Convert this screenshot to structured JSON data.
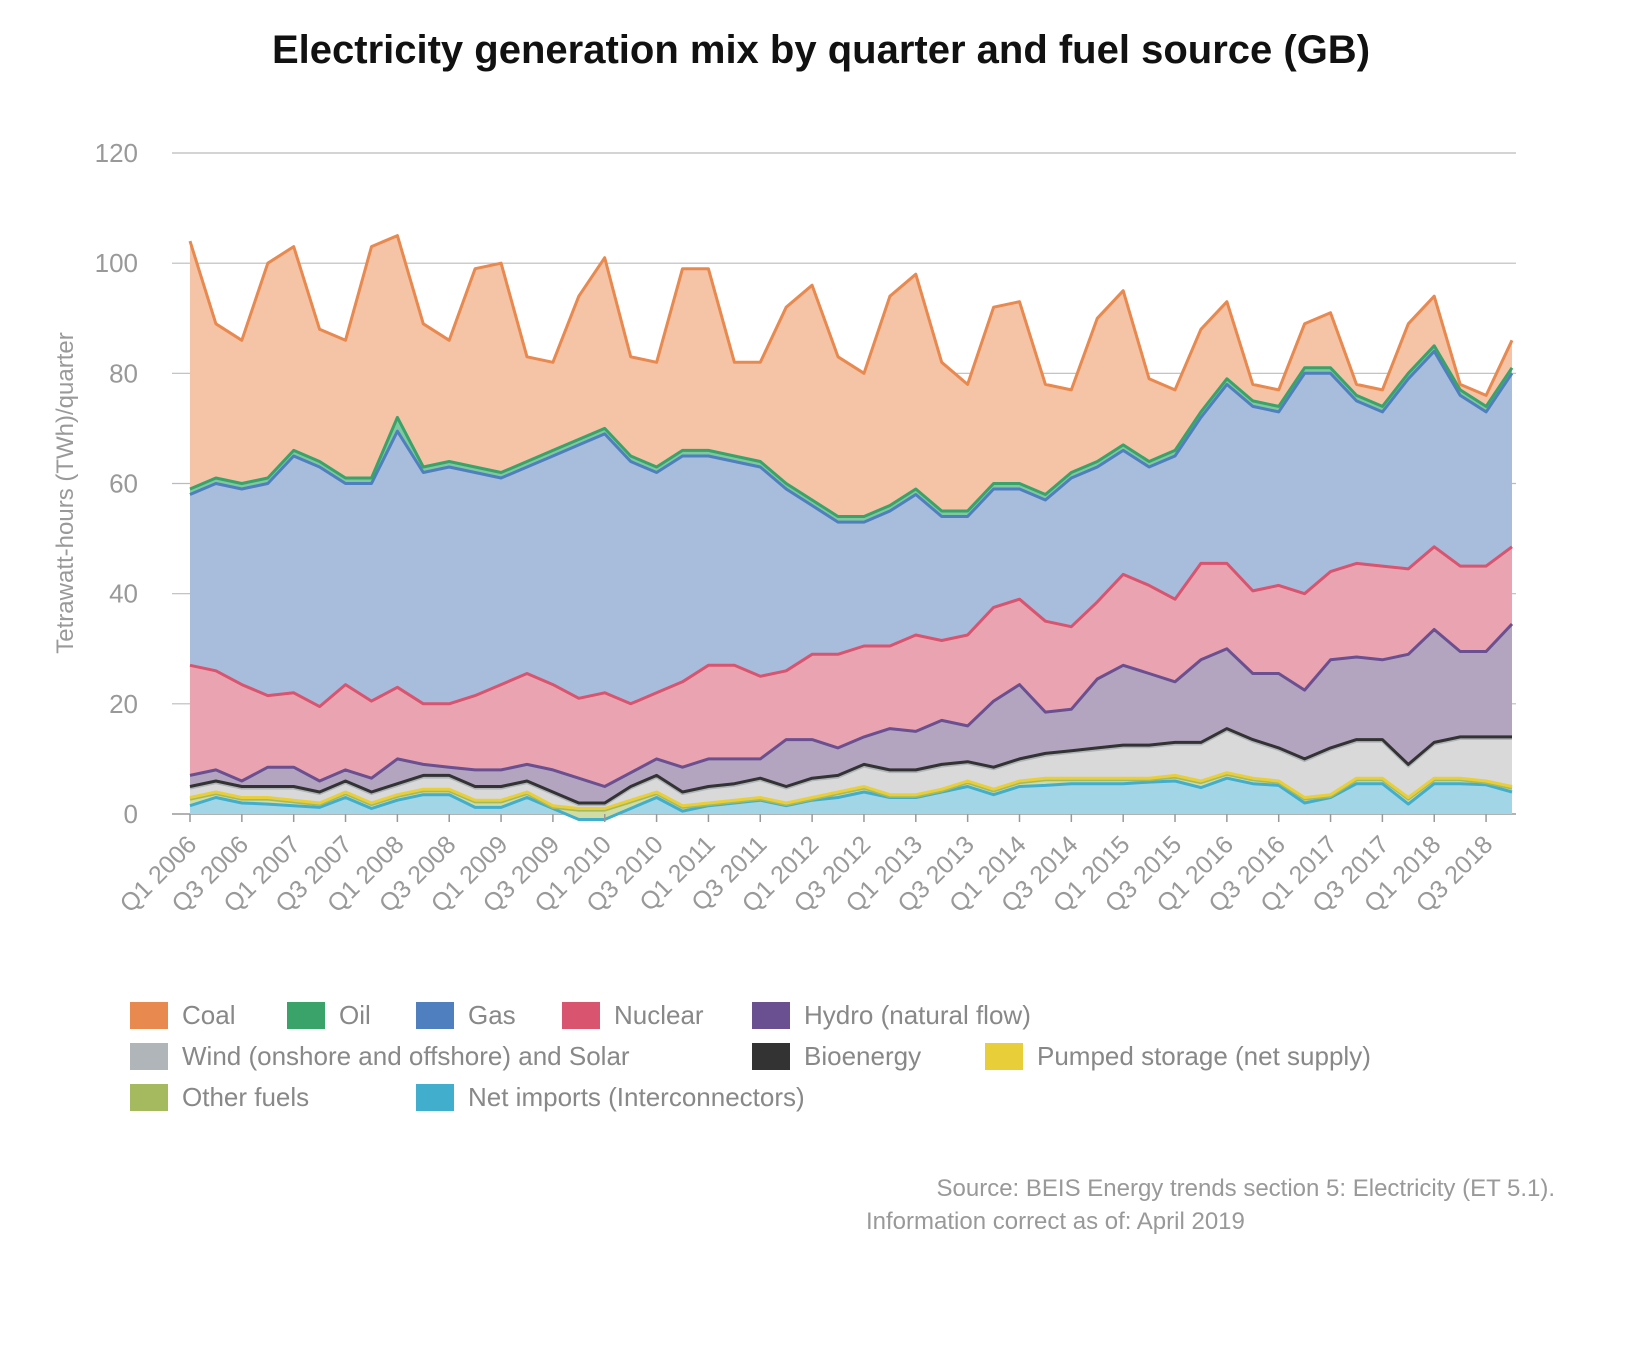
{
  "chart_data": {
    "type": "area",
    "stacked": true,
    "title": "Electricity generation mix by quarter and fuel source (GB)",
    "xlabel": "",
    "ylabel": "Tetrawatt-hours (TWh)/quarter",
    "ylim": [
      0,
      120
    ],
    "yticks": [
      0,
      20,
      40,
      60,
      80,
      100,
      120
    ],
    "grid": true,
    "legend_position": "bottom",
    "x": [
      "Q1 2006",
      "Q2 2006",
      "Q3 2006",
      "Q4 2006",
      "Q1 2007",
      "Q2 2007",
      "Q3 2007",
      "Q4 2007",
      "Q1 2008",
      "Q2 2008",
      "Q3 2008",
      "Q4 2008",
      "Q1 2009",
      "Q2 2009",
      "Q3 2009",
      "Q4 2009",
      "Q1 2010",
      "Q2 2010",
      "Q3 2010",
      "Q4 2010",
      "Q1 2011",
      "Q2 2011",
      "Q3 2011",
      "Q4 2011",
      "Q1 2012",
      "Q2 2012",
      "Q3 2012",
      "Q4 2012",
      "Q1 2013",
      "Q2 2013",
      "Q3 2013",
      "Q4 2013",
      "Q1 2014",
      "Q2 2014",
      "Q3 2014",
      "Q4 2014",
      "Q1 2015",
      "Q2 2015",
      "Q3 2015",
      "Q4 2015",
      "Q1 2016",
      "Q2 2016",
      "Q3 2016",
      "Q4 2016",
      "Q1 2017",
      "Q2 2017",
      "Q3 2017",
      "Q4 2017",
      "Q1 2018",
      "Q2 2018",
      "Q3 2018",
      "Q4 2018"
    ],
    "xtick_labels": [
      "Q1 2006",
      "Q3 2006",
      "Q1 2007",
      "Q3 2007",
      "Q1 2008",
      "Q3 2008",
      "Q1 2009",
      "Q3 2009",
      "Q1 2010",
      "Q3 2010",
      "Q1 2011",
      "Q3 2011",
      "Q1 2012",
      "Q3 2012",
      "Q1 2013",
      "Q3 2013",
      "Q1 2014",
      "Q3 2014",
      "Q1 2015",
      "Q3 2015",
      "Q1 2016",
      "Q3 2016",
      "Q1 2017",
      "Q3 2017",
      "Q1 2018",
      "Q3 2018"
    ],
    "stack_order_bottom_to_top": [
      "Net imports (Interconnectors)",
      "Other fuels",
      "Pumped storage (net supply)",
      "Wind (onshore and offshore) and Solar",
      "Bioenergy",
      "Hydro (natural flow)",
      "Nuclear",
      "Gas",
      "Oil",
      "Coal"
    ],
    "series": [
      {
        "name": "Coal",
        "color": "#e8894f",
        "fill": "#f5c3a5",
        "values": [
          45,
          28,
          26,
          39,
          37,
          24,
          25,
          42,
          33,
          26,
          22,
          36,
          38,
          19,
          16,
          26,
          31,
          18,
          19,
          33,
          33,
          17,
          18,
          32,
          39,
          29,
          26,
          38,
          39,
          27,
          23,
          32,
          33,
          20,
          15,
          26,
          28,
          15,
          11,
          15,
          14,
          3,
          3,
          8,
          10,
          2,
          3,
          9,
          9,
          1,
          2,
          5
        ]
      },
      {
        "name": "Oil",
        "color": "#3aa36a",
        "fill": "#7fc99e",
        "values": [
          1,
          1,
          1,
          1,
          1,
          1,
          1,
          1,
          2.5,
          1,
          1,
          1,
          1,
          1,
          1,
          1,
          1,
          1,
          1,
          1,
          1,
          1,
          1,
          1,
          1,
          1,
          1,
          1,
          1,
          1,
          1,
          1,
          1,
          1,
          1,
          1,
          1,
          1,
          1,
          1,
          1,
          1,
          1,
          1,
          1,
          1,
          1,
          1,
          1,
          1,
          1,
          1
        ]
      },
      {
        "name": "Gas",
        "color": "#4f7fbf",
        "fill": "#a8bcdc",
        "values": [
          31,
          34,
          35.5,
          38.5,
          43,
          43.5,
          36.5,
          39.5,
          46.5,
          42,
          43,
          40.5,
          37.5,
          37.5,
          41.5,
          46,
          47,
          44,
          40,
          41,
          38,
          37,
          38,
          33,
          27,
          24,
          22.5,
          24.5,
          25.5,
          22.5,
          21.5,
          21.5,
          20,
          22,
          27,
          24.5,
          22.5,
          21.5,
          26,
          26.5,
          32.5,
          33.5,
          31.5,
          40,
          36,
          29.5,
          28,
          34.5,
          35.5,
          31,
          28,
          31.5
        ]
      },
      {
        "name": "Nuclear",
        "color": "#d9546e",
        "fill": "#eaa4b1",
        "values": [
          20,
          18,
          17.5,
          13,
          13.5,
          13.5,
          15.5,
          14,
          13,
          11,
          11.5,
          13.5,
          15.5,
          16.5,
          15.5,
          14.5,
          17,
          12.5,
          12,
          15.5,
          17,
          17,
          15,
          12.5,
          15.5,
          17,
          16.5,
          15,
          17.5,
          14.5,
          16.5,
          17,
          15.5,
          16.5,
          15,
          14,
          16.5,
          16,
          15,
          17.5,
          15.5,
          15,
          16,
          17.5,
          16,
          17,
          17,
          15.5,
          15,
          15.5,
          15.5,
          14
        ]
      },
      {
        "name": "Hydro (natural flow)",
        "color": "#6a5090",
        "fill": "#b3a5c0",
        "values": [
          2,
          2,
          1,
          3.5,
          3.5,
          2,
          2,
          2.5,
          4.5,
          2,
          1.5,
          3,
          3,
          3,
          4,
          4.5,
          3,
          2.5,
          3,
          4.5,
          5,
          4.5,
          3.5,
          8.5,
          7,
          5,
          5,
          7.5,
          7,
          8,
          6.5,
          12,
          13.5,
          7.5,
          7.5,
          12.5,
          14.5,
          13,
          11,
          15,
          14.5,
          12,
          13.5,
          12.5,
          16,
          15,
          14.5,
          20,
          20.5,
          15.5,
          15.5,
          20.5
        ]
      },
      {
        "name": "Wind (onshore and offshore) and Solar",
        "color": "#b0b5ba",
        "fill": "#d9d9d9",
        "values": [
          1.7,
          1.7,
          1.7,
          1.7,
          2.2,
          1.7,
          1.7,
          1.7,
          1.7,
          2.2,
          2.2,
          2.2,
          2.2,
          1.7,
          2.2,
          0.7,
          0.7,
          2.2,
          2.7,
          2.2,
          2.7,
          2.7,
          3.2,
          2.7,
          3.2,
          2.7,
          3.7,
          4.2,
          4.2,
          4.2,
          3.2,
          3.7,
          3.7,
          4.2,
          4.7,
          5.2,
          5.7,
          5.7,
          5.7,
          6.7,
          7.7,
          6.7,
          5.7,
          6.7,
          8.2,
          6.7,
          6.7,
          5.7,
          6.2,
          7.2,
          7.7,
          8.7
        ]
      },
      {
        "name": "Bioenergy",
        "color": "#333333",
        "fill": "#555555",
        "values": [
          0.3,
          0.3,
          0.3,
          0.3,
          0.3,
          0.3,
          0.3,
          0.3,
          0.3,
          0.3,
          0.3,
          0.3,
          0.3,
          0.3,
          0.3,
          0.3,
          0.3,
          0.3,
          0.3,
          0.3,
          0.3,
          0.3,
          0.3,
          0.3,
          0.3,
          0.3,
          0.3,
          0.3,
          0.3,
          0.3,
          0.3,
          0.3,
          0.3,
          0.3,
          0.3,
          0.3,
          0.3,
          0.3,
          0.3,
          0.3,
          0.3,
          0.3,
          0.3,
          0.3,
          0.3,
          0.3,
          0.3,
          0.3,
          0.3,
          0.3,
          0.3,
          0.3
        ]
      },
      {
        "name": "Pumped storage (net supply)",
        "color": "#e8cf3a",
        "fill": "#f0e08a",
        "values": [
          0.3,
          0.3,
          0.3,
          0.3,
          0.3,
          0.3,
          0.3,
          0.3,
          0.3,
          0.3,
          0.3,
          0.3,
          0.3,
          0.3,
          0.3,
          0.3,
          0.3,
          0.3,
          0.3,
          0.3,
          0.3,
          0.3,
          0.3,
          0.3,
          0.3,
          0.3,
          0.3,
          0.3,
          0.3,
          0.3,
          0.3,
          0.3,
          0.3,
          0.3,
          0.3,
          0.3,
          0.3,
          0.3,
          0.3,
          0.3,
          0.3,
          0.3,
          0.3,
          0.3,
          0.3,
          0.3,
          0.3,
          0.3,
          0.3,
          0.3,
          0.3,
          0.3
        ]
      },
      {
        "name": "Other fuels",
        "color": "#a5ba5e",
        "fill": "#cfdca6",
        "values": [
          1.2,
          0.7,
          0.7,
          0.9,
          0.7,
          0.5,
          0.7,
          0.7,
          0.7,
          0.7,
          0.7,
          1.0,
          1.0,
          0.7,
          0.2,
          1.7,
          1.7,
          1.2,
          0.7,
          0.7,
          0.2,
          0.2,
          0.2,
          0.2,
          0.2,
          0.7,
          0.7,
          0.2,
          0.2,
          0.2,
          0.7,
          0.7,
          0.7,
          1.0,
          0.7,
          0.7,
          0.7,
          0.4,
          0.7,
          0.9,
          0.7,
          0.7,
          0.5,
          0.7,
          0.2,
          0.7,
          0.7,
          0.9,
          0.7,
          0.7,
          0.4,
          0.7
        ]
      },
      {
        "name": "Net imports (Interconnectors)",
        "color": "#41aecd",
        "fill": "#a2d6e6",
        "values": [
          1.5,
          3,
          2,
          1.8,
          1.5,
          1.2,
          3,
          1,
          2.5,
          3.5,
          3.5,
          1.2,
          1.2,
          3,
          1,
          -1,
          -1,
          1,
          3,
          0.5,
          1.5,
          2,
          2.5,
          1.5,
          2.5,
          3,
          4,
          3,
          3,
          4,
          5,
          3.5,
          5,
          5.2,
          5.5,
          5.5,
          5.5,
          5.8,
          6,
          4.8,
          6.5,
          5.5,
          5.2,
          2,
          3,
          5.5,
          5.5,
          1.8,
          5.5,
          5.5,
          5.3,
          4
        ]
      }
    ],
    "legend": [
      "Coal",
      "Oil",
      "Gas",
      "Nuclear",
      "Hydro (natural flow)",
      "Wind (onshore and offshore) and Solar",
      "Bioenergy",
      "Pumped storage (net supply)",
      "Other fuels",
      "Net imports (Interconnectors)"
    ]
  },
  "source": {
    "line1": "Source: BEIS Energy trends section 5: Electricity (ET 5.1).",
    "line2": "Information correct as of: April 2019"
  }
}
